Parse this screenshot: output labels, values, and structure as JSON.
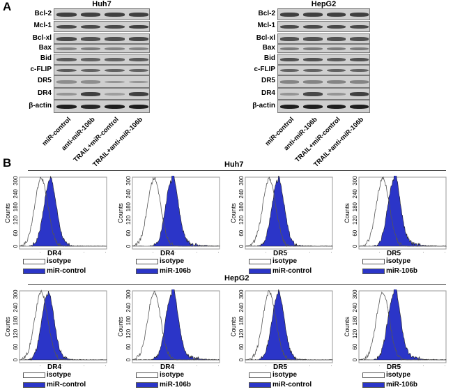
{
  "panel_a": {
    "letter": "A",
    "blots": [
      {
        "title": "Huh7",
        "proteins": [
          "Bcl-2",
          "Mcl-1",
          "Bcl-xl",
          "Bax",
          "Bid",
          "c-FLIP",
          "DR5",
          "DR4",
          "β-actin"
        ],
        "lanes": [
          "miR-control",
          "anti-miR-106b",
          "TRAIL+miR-control",
          "TRAIL+anti-miR-106b"
        ],
        "band_intensity": [
          [
            0.8,
            0.8,
            0.8,
            0.8
          ],
          [
            0.75,
            0.75,
            0.75,
            0.8
          ],
          [
            0.75,
            0.7,
            0.7,
            0.75
          ],
          [
            0.4,
            0.45,
            0.4,
            0.4
          ],
          [
            0.65,
            0.6,
            0.6,
            0.65
          ],
          [
            0.65,
            0.6,
            0.6,
            0.6
          ],
          [
            0.35,
            0.35,
            0.3,
            0.3
          ],
          [
            0.3,
            0.8,
            0.25,
            0.8
          ],
          [
            1,
            0.95,
            1,
            1
          ]
        ]
      },
      {
        "title": "HepG2",
        "proteins": [
          "Bcl-2",
          "Mcl-1",
          "Bcl-xl",
          "Bax",
          "Bid",
          "c-FLIP",
          "DR5",
          "DR4",
          "β-actin"
        ],
        "lanes": [
          "miR-control",
          "anti-miR-106b",
          "TRAIL+miR-control",
          "TRAIL+anti-miR-106b"
        ],
        "band_intensity": [
          [
            0.8,
            0.8,
            0.8,
            0.8
          ],
          [
            0.75,
            0.75,
            0.75,
            0.75
          ],
          [
            0.7,
            0.7,
            0.7,
            0.7
          ],
          [
            0.45,
            0.45,
            0.45,
            0.45
          ],
          [
            0.7,
            0.7,
            0.65,
            0.7
          ],
          [
            0.6,
            0.6,
            0.6,
            0.6
          ],
          [
            0.4,
            0.4,
            0.4,
            0.4
          ],
          [
            0.3,
            0.75,
            0.3,
            0.8
          ],
          [
            1,
            1,
            1,
            1
          ]
        ]
      }
    ]
  },
  "panel_b": {
    "letter": "B",
    "ylabel": "Counts",
    "yticks": [
      "0",
      "60",
      "120",
      "180",
      "240",
      "300"
    ],
    "legend_isotype": "isotype",
    "fill_color": "#2b35c8",
    "rows": [
      {
        "cell_line": "Huh7",
        "plots": [
          {
            "marker": "DR4",
            "sample": "miR-control",
            "isotype_peak": 1.0,
            "sample_peak": 1.4
          },
          {
            "marker": "DR4",
            "sample": "miR-106b",
            "isotype_peak": 1.0,
            "sample_peak": 1.8
          },
          {
            "marker": "DR5",
            "sample": "miR-control",
            "isotype_peak": 1.1,
            "sample_peak": 1.5
          },
          {
            "marker": "DR5",
            "sample": "miR-106b",
            "isotype_peak": 1.1,
            "sample_peak": 1.6
          }
        ]
      },
      {
        "cell_line": "HepG2",
        "plots": [
          {
            "marker": "DR4",
            "sample": "miR-control",
            "isotype_peak": 1.0,
            "sample_peak": 1.3
          },
          {
            "marker": "DR4",
            "sample": "miR-106b",
            "isotype_peak": 1.0,
            "sample_peak": 1.8
          },
          {
            "marker": "DR5",
            "sample": "miR-control",
            "isotype_peak": 1.1,
            "sample_peak": 1.5
          },
          {
            "marker": "DR5",
            "sample": "miR-106b",
            "isotype_peak": 1.1,
            "sample_peak": 1.6
          }
        ]
      }
    ]
  }
}
